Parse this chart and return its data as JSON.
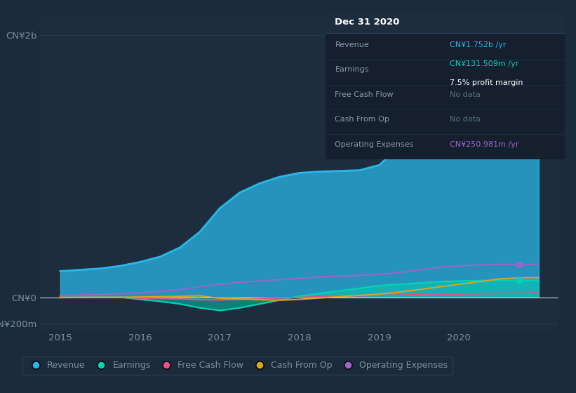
{
  "bg_color": "#1c2b3a",
  "plot_bg_color": "#1e2d3e",
  "grid_color": "#273d52",
  "text_color": "#7a8fa0",
  "zero_line_color": "#e0e0e0",
  "x_years": [
    2015.0,
    2015.25,
    2015.5,
    2015.75,
    2016.0,
    2016.25,
    2016.5,
    2016.75,
    2017.0,
    2017.25,
    2017.5,
    2017.75,
    2018.0,
    2018.25,
    2018.5,
    2018.75,
    2019.0,
    2019.25,
    2019.5,
    2019.75,
    2020.0,
    2020.25,
    2020.5,
    2020.75,
    2021.0
  ],
  "revenue": [
    200,
    210,
    220,
    240,
    270,
    310,
    380,
    500,
    680,
    800,
    870,
    920,
    950,
    960,
    965,
    970,
    1010,
    1150,
    1350,
    1550,
    1700,
    1730,
    1748,
    1752,
    1752
  ],
  "earnings": [
    5,
    4,
    3,
    2,
    -15,
    -30,
    -50,
    -80,
    -100,
    -80,
    -50,
    -20,
    10,
    30,
    50,
    70,
    90,
    100,
    110,
    120,
    125,
    128,
    130,
    131,
    131
  ],
  "free_cash_flow": [
    2,
    1,
    0,
    -1,
    -5,
    -8,
    -12,
    -18,
    -20,
    -15,
    -10,
    -5,
    0,
    5,
    8,
    12,
    15,
    18,
    20,
    22,
    25,
    28,
    30,
    32,
    32
  ],
  "cash_from_op": [
    -2,
    -1,
    0,
    1,
    3,
    5,
    8,
    12,
    -8,
    -12,
    -18,
    -22,
    -15,
    -5,
    5,
    15,
    25,
    40,
    60,
    80,
    100,
    120,
    140,
    150,
    150
  ],
  "operating_expenses": [
    15,
    18,
    22,
    28,
    35,
    45,
    60,
    80,
    100,
    115,
    125,
    135,
    145,
    155,
    162,
    168,
    175,
    190,
    210,
    230,
    240,
    248,
    252,
    251,
    251
  ],
  "revenue_color": "#29b6e8",
  "earnings_color": "#00d4b4",
  "fcf_color": "#e05585",
  "cashop_color": "#d4a820",
  "opex_color": "#9966cc",
  "revenue_fill_alpha": 0.75,
  "earnings_fill_alpha": 0.5,
  "ylim_min": -250,
  "ylim_max": 2150,
  "ytick_vals": [
    -200,
    0,
    2000
  ],
  "ytick_labels": [
    "-CN¥200m",
    "CN¥0",
    "CN¥2b"
  ],
  "xtick_vals": [
    2015,
    2016,
    2017,
    2018,
    2019,
    2020
  ],
  "legend_items": [
    {
      "label": "Revenue",
      "color": "#29b6e8"
    },
    {
      "label": "Earnings",
      "color": "#00d4b4"
    },
    {
      "label": "Free Cash Flow",
      "color": "#e05585"
    },
    {
      "label": "Cash From Op",
      "color": "#d4a820"
    },
    {
      "label": "Operating Expenses",
      "color": "#9966cc"
    }
  ],
  "tooltip": {
    "title": "Dec 31 2020",
    "rows": [
      {
        "label": "Revenue",
        "value": "CN¥1.752b /yr",
        "color": "#29b6e8",
        "extra": null
      },
      {
        "label": "Earnings",
        "value": "CN¥131.509m /yr",
        "color": "#00d4b4",
        "extra": "7.5% profit margin"
      },
      {
        "label": "Free Cash Flow",
        "value": "No data",
        "color": "#5a7080",
        "extra": null
      },
      {
        "label": "Cash From Op",
        "value": "No data",
        "color": "#5a7080",
        "extra": null
      },
      {
        "label": "Operating Expenses",
        "value": "CN¥250.981m /yr",
        "color": "#9966cc",
        "extra": null
      }
    ]
  },
  "figsize": [
    8.21,
    5.6
  ],
  "dpi": 100
}
